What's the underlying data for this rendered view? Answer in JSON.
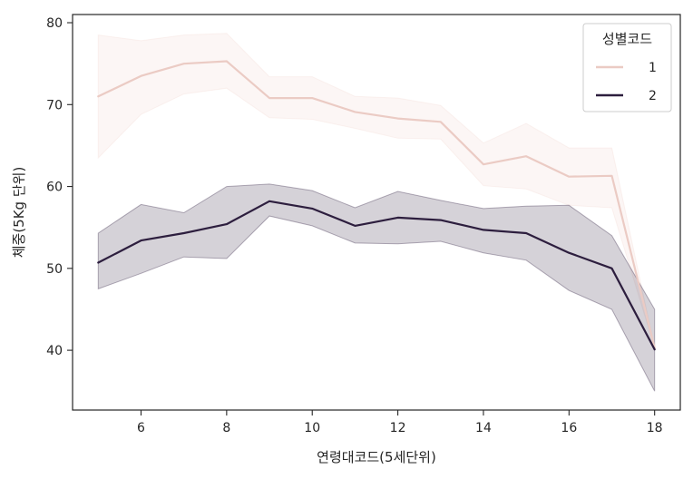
{
  "chart_data": {
    "type": "line",
    "xlabel": "연령대코드(5세단위)",
    "ylabel": "체중(5Kg 단위)",
    "xlim": [
      4.4,
      18.6
    ],
    "ylim": [
      32.7,
      81
    ],
    "xticks": [
      6,
      8,
      10,
      12,
      14,
      16,
      18
    ],
    "yticks": [
      40,
      50,
      60,
      70,
      80
    ],
    "grid": false,
    "legend": {
      "title": "성별코드",
      "placement": "top-right"
    },
    "series": [
      {
        "name": "1",
        "color": "#ebcbc4",
        "band_color": "#f3dcd6",
        "x": [
          5,
          6,
          7,
          8,
          9,
          10,
          11,
          12,
          13,
          14,
          15,
          16,
          17,
          18
        ],
        "y": [
          71.0,
          73.5,
          75.0,
          75.3,
          70.8,
          70.8,
          69.1,
          68.3,
          67.9,
          62.7,
          63.7,
          61.2,
          61.3,
          40.3
        ],
        "lower": [
          63.5,
          68.8,
          71.3,
          72.0,
          68.4,
          68.2,
          67.1,
          65.9,
          65.8,
          60.1,
          59.7,
          57.7,
          57.4,
          40.3
        ],
        "upper": [
          78.5,
          77.8,
          78.5,
          78.7,
          73.4,
          73.4,
          71.0,
          70.8,
          69.9,
          65.3,
          67.7,
          64.7,
          64.7,
          40.3
        ]
      },
      {
        "name": "2",
        "color": "#2d1e3e",
        "band_color": "#2d1e3e",
        "x": [
          5,
          6,
          7,
          8,
          9,
          10,
          11,
          12,
          13,
          14,
          15,
          16,
          17,
          18
        ],
        "y": [
          50.7,
          53.4,
          54.3,
          55.4,
          58.2,
          57.3,
          55.2,
          56.2,
          55.9,
          54.7,
          54.3,
          51.9,
          50.0,
          40.1
        ],
        "lower": [
          47.5,
          49.4,
          51.4,
          51.2,
          56.4,
          55.2,
          53.1,
          53.0,
          53.3,
          51.9,
          51.0,
          47.3,
          45.0,
          35.0
        ],
        "upper": [
          54.3,
          57.8,
          56.8,
          60.0,
          60.3,
          59.5,
          57.4,
          59.4,
          58.3,
          57.3,
          57.6,
          57.7,
          54.0,
          45.0
        ]
      }
    ]
  }
}
